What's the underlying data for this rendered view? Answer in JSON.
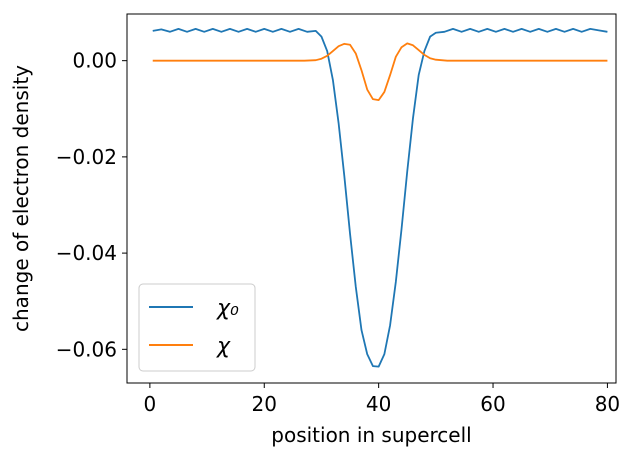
{
  "chart_data": {
    "type": "line",
    "xlabel": "position in supercell",
    "ylabel": "change of electron density",
    "xlim": [
      -4,
      81.5
    ],
    "ylim": [
      -0.067,
      0.0097
    ],
    "xticks": [
      0,
      20,
      40,
      60,
      80
    ],
    "xtick_labels": [
      "0",
      "20",
      "40",
      "60",
      "80"
    ],
    "yticks": [
      0.0,
      -0.02,
      -0.04,
      -0.06
    ],
    "ytick_labels": [
      "0.00",
      "−0.02",
      "−0.04",
      "−0.06"
    ],
    "grid": false,
    "legend_position": "lower-left",
    "series": [
      {
        "name": "χ₀",
        "color": "#1f77b4",
        "x": [
          0.5,
          2,
          3.5,
          5,
          6.5,
          8,
          9.5,
          11,
          12.5,
          14,
          15.5,
          17,
          18.5,
          20,
          21.5,
          23,
          24.5,
          26,
          27.5,
          29,
          30,
          31,
          32,
          33,
          34,
          35,
          36,
          37,
          38,
          39,
          40,
          41,
          42,
          43,
          44,
          45,
          46,
          47,
          48,
          49,
          50,
          51.5,
          53,
          54.5,
          56,
          57.5,
          59,
          60.5,
          62,
          63.5,
          65,
          66.5,
          68,
          69.5,
          71,
          72.5,
          74,
          75.5,
          77,
          78.5,
          80
        ],
        "y": [
          0.0062,
          0.0065,
          0.006,
          0.0066,
          0.006,
          0.0066,
          0.006,
          0.0066,
          0.006,
          0.0066,
          0.006,
          0.0066,
          0.006,
          0.0066,
          0.006,
          0.0066,
          0.006,
          0.0066,
          0.006,
          0.0062,
          0.005,
          0.002,
          -0.004,
          -0.013,
          -0.024,
          -0.036,
          -0.047,
          -0.056,
          -0.061,
          -0.0635,
          -0.0636,
          -0.061,
          -0.055,
          -0.046,
          -0.035,
          -0.023,
          -0.012,
          -0.003,
          0.002,
          0.005,
          0.0058,
          0.006,
          0.0066,
          0.006,
          0.0066,
          0.006,
          0.0066,
          0.006,
          0.0066,
          0.006,
          0.0066,
          0.006,
          0.0066,
          0.006,
          0.0066,
          0.006,
          0.0066,
          0.006,
          0.0066,
          0.0063,
          0.006
        ]
      },
      {
        "name": "χ",
        "color": "#ff7f0e",
        "x": [
          0.5,
          10,
          20,
          27,
          29,
          30,
          31,
          32,
          33,
          34,
          35,
          36,
          37,
          38,
          39,
          40,
          41,
          42,
          43,
          44,
          45,
          46,
          47,
          48,
          49,
          50,
          52,
          60,
          70,
          80
        ],
        "y": [
          0.0,
          0.0,
          0.0,
          0.0,
          0.0001,
          0.0004,
          0.001,
          0.002,
          0.003,
          0.0035,
          0.0033,
          0.0015,
          -0.002,
          -0.006,
          -0.008,
          -0.0082,
          -0.0065,
          -0.003,
          0.0008,
          0.0028,
          0.0036,
          0.0032,
          0.0022,
          0.0012,
          0.0005,
          0.0002,
          0.0,
          0.0,
          0.0,
          0.0
        ]
      }
    ]
  }
}
